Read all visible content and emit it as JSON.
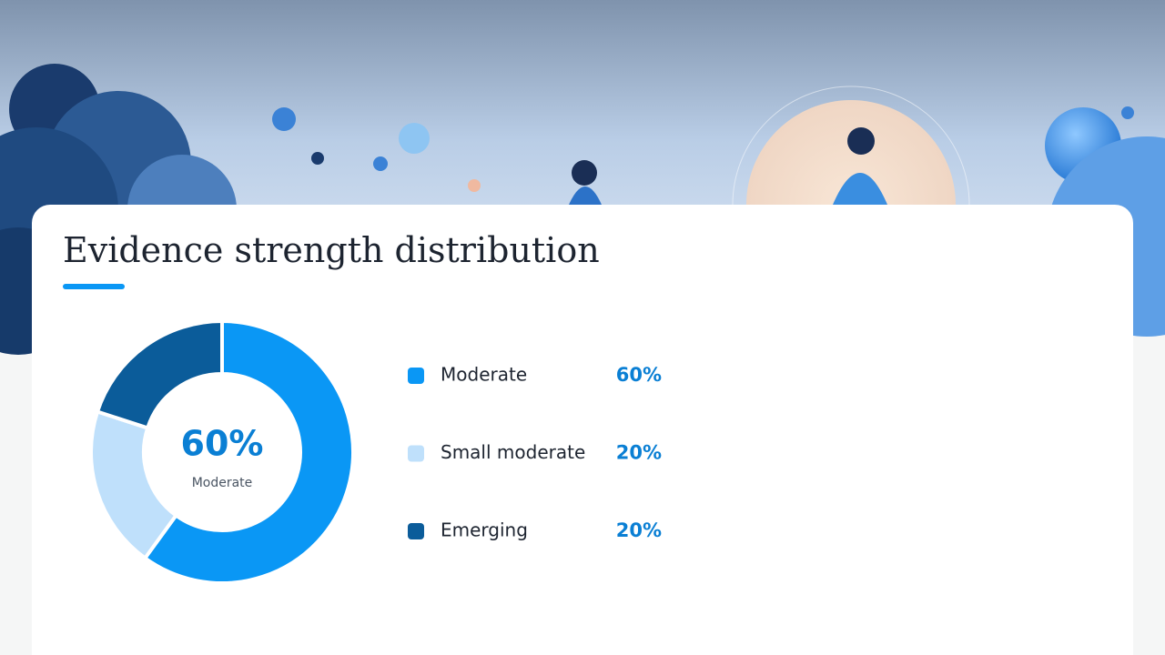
{
  "chart_data": {
    "type": "pie",
    "title": "Evidence strength distribution",
    "categories": [
      "Moderate",
      "Small moderate",
      "Emerging"
    ],
    "values": [
      60,
      20,
      20
    ],
    "value_labels": [
      "60%",
      "20%",
      "20%"
    ],
    "colors": [
      "#0a97f5",
      "#bfe0fb",
      "#0b5c9a"
    ],
    "donut": true
  }
}
